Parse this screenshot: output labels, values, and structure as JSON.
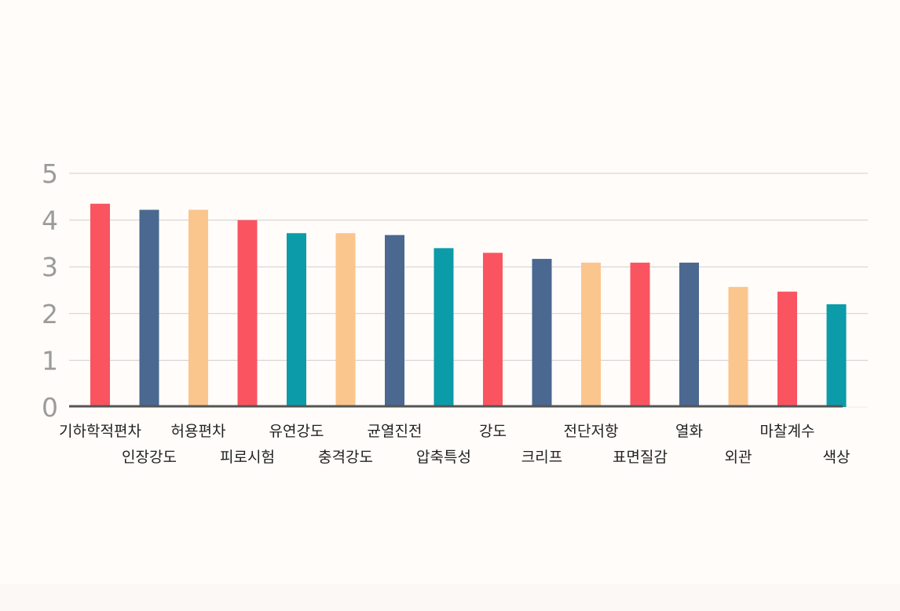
{
  "chart_data": {
    "type": "bar",
    "title": "",
    "xlabel": "",
    "ylabel": "",
    "ylim": [
      0,
      5
    ],
    "y_ticks": [
      0,
      1,
      2,
      3,
      4,
      5
    ],
    "grid": true,
    "categories": [
      "기하학적편차",
      "인장강도",
      "허용편차",
      "피로시험",
      "유연강도",
      "충격강도",
      "균열진전",
      "압축특성",
      "강도",
      "크리프",
      "전단저항",
      "표면질감",
      "열화",
      "외관",
      "마찰계수",
      "색상"
    ],
    "values": [
      4.35,
      4.22,
      4.22,
      4.0,
      3.72,
      3.72,
      3.68,
      3.4,
      3.3,
      3.17,
      3.09,
      3.09,
      3.09,
      2.57,
      2.47,
      2.2
    ],
    "colors": [
      "#fa5461",
      "#4a6890",
      "#fbc58e",
      "#fa5461",
      "#0c9ba9",
      "#fbc58e",
      "#4a6890",
      "#0c9ba9",
      "#fa5461",
      "#4a6890",
      "#fbc58e",
      "#fa5461",
      "#4a6890",
      "#fbc58e",
      "#fa5461",
      "#0c9ba9"
    ]
  }
}
